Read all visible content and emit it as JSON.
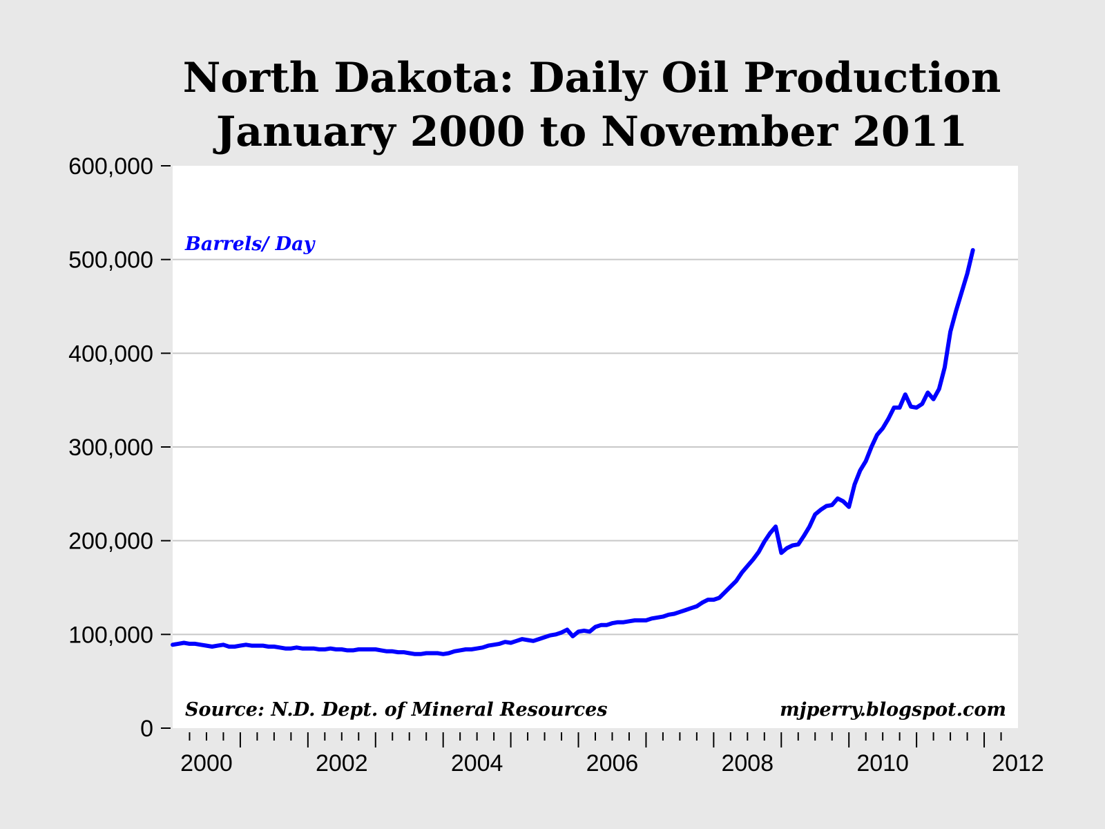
{
  "chart_data": {
    "type": "line",
    "title": [
      "North Dakota: Daily Oil Production",
      "January 2000 to November 2011"
    ],
    "xlabel": "",
    "ylabel": "",
    "series_label": "Barrels/ Day",
    "source": "Source: N.D. Dept. of Mineral Resources",
    "credit": "mjperry.blogspot.com",
    "x_start": "2000-01",
    "x_end": "2011-11",
    "frequency": "monthly",
    "xlim": [
      2000,
      2012.5
    ],
    "ylim": [
      0,
      600000
    ],
    "grid": true,
    "line_color": "#0000ff",
    "xticks": [
      "2000",
      "2002",
      "2004",
      "2006",
      "2008",
      "2010",
      "2012"
    ],
    "yticks": [
      "0",
      "100,000",
      "200,000",
      "300,000",
      "400,000",
      "500,000",
      "600,000"
    ],
    "series": [
      {
        "name": "Barrels/ Day",
        "values_thousands": [
          89,
          90,
          91,
          90,
          90,
          89,
          88,
          87,
          88,
          89,
          87,
          87,
          88,
          89,
          88,
          88,
          88,
          87,
          87,
          86,
          85,
          85,
          86,
          85,
          85,
          85,
          84,
          84,
          85,
          84,
          84,
          83,
          83,
          84,
          84,
          84,
          84,
          83,
          82,
          82,
          81,
          81,
          80,
          79,
          79,
          80,
          80,
          80,
          79,
          80,
          82,
          83,
          84,
          84,
          85,
          86,
          88,
          89,
          90,
          92,
          91,
          93,
          95,
          94,
          93,
          95,
          97,
          99,
          100,
          102,
          105,
          98,
          103,
          104,
          103,
          108,
          110,
          110,
          112,
          113,
          113,
          114,
          115,
          115,
          115,
          117,
          118,
          119,
          121,
          122,
          124,
          126,
          128,
          130,
          134,
          137,
          137,
          139,
          145,
          151,
          157,
          166,
          173,
          180,
          188,
          199,
          208,
          215,
          187,
          192,
          195,
          196,
          205,
          215,
          228,
          233,
          237,
          238,
          245,
          242,
          236,
          260,
          275,
          285,
          300,
          313,
          320,
          330,
          342,
          342,
          356,
          343,
          342,
          346,
          358,
          351,
          362,
          385,
          423,
          445,
          465,
          485,
          510
        ]
      }
    ]
  }
}
